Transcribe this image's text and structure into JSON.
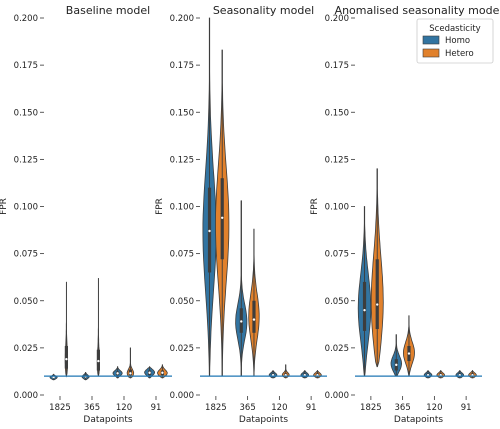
{
  "colors": {
    "homo": "#3274a1",
    "hetero": "#e1812c",
    "baseline": "#1f77b4",
    "inner": "#3d3d3d"
  },
  "legend": {
    "title": "Scedasticity",
    "entries": [
      "Homo",
      "Hetero"
    ],
    "placement": "top-right"
  },
  "chart_data": [
    {
      "type": "violin",
      "title": "Baseline model",
      "xlabel": "Datapoints",
      "ylabel": "FPR",
      "ylim": [
        0,
        0.2
      ],
      "yticks": [
        "0.000",
        "0.025",
        "0.050",
        "0.075",
        "0.100",
        "0.125",
        "0.150",
        "0.175",
        "0.200"
      ],
      "categories": [
        "1825",
        "365",
        "120",
        "91"
      ],
      "baseline": 0.01,
      "series": [
        {
          "name": "Homo",
          "violins": [
            {
              "min": 0.008,
              "max": 0.011,
              "q1": 0.009,
              "median": 0.0095,
              "q3": 0.0102,
              "width": 0.5,
              "mode": 0.0093
            },
            {
              "min": 0.008,
              "max": 0.012,
              "q1": 0.009,
              "median": 0.0098,
              "q3": 0.0105,
              "width": 0.5,
              "mode": 0.0096
            },
            {
              "min": 0.009,
              "max": 0.015,
              "q1": 0.0105,
              "median": 0.0115,
              "q3": 0.0125,
              "width": 0.65,
              "mode": 0.0115
            },
            {
              "min": 0.009,
              "max": 0.015,
              "q1": 0.0105,
              "median": 0.0118,
              "q3": 0.013,
              "width": 0.7,
              "mode": 0.012
            }
          ]
        },
        {
          "name": "Hetero",
          "violins": [
            {
              "min": 0.01,
              "max": 0.06,
              "q1": 0.014,
              "median": 0.019,
              "q3": 0.026,
              "width": 0.22,
              "mode": 0.015
            },
            {
              "min": 0.01,
              "max": 0.062,
              "q1": 0.013,
              "median": 0.018,
              "q3": 0.024,
              "width": 0.22,
              "mode": 0.014
            },
            {
              "min": 0.009,
              "max": 0.025,
              "q1": 0.0105,
              "median": 0.0115,
              "q3": 0.0135,
              "width": 0.6,
              "mode": 0.011
            },
            {
              "min": 0.009,
              "max": 0.016,
              "q1": 0.0105,
              "median": 0.0118,
              "q3": 0.013,
              "width": 0.7,
              "mode": 0.0115
            }
          ]
        }
      ]
    },
    {
      "type": "violin",
      "title": "Seasonality model",
      "xlabel": "Datapoints",
      "ylabel": "FPR",
      "ylim": [
        0,
        0.2
      ],
      "yticks": [
        "0.000",
        "0.025",
        "0.050",
        "0.075",
        "0.100",
        "0.125",
        "0.150",
        "0.175",
        "0.200"
      ],
      "categories": [
        "1825",
        "365",
        "120",
        "91"
      ],
      "baseline": 0.01,
      "series": [
        {
          "name": "Homo",
          "violins": [
            {
              "min": 0.01,
              "max": 0.2,
              "q1": 0.065,
              "median": 0.087,
              "q3": 0.11,
              "width": 0.95,
              "mode": 0.085
            },
            {
              "min": 0.01,
              "max": 0.103,
              "q1": 0.033,
              "median": 0.039,
              "q3": 0.046,
              "width": 0.85,
              "mode": 0.038
            },
            {
              "min": 0.009,
              "max": 0.013,
              "q1": 0.0098,
              "median": 0.0105,
              "q3": 0.0115,
              "width": 0.55,
              "mode": 0.0105
            },
            {
              "min": 0.009,
              "max": 0.013,
              "q1": 0.0098,
              "median": 0.0105,
              "q3": 0.0115,
              "width": 0.55,
              "mode": 0.0105
            }
          ]
        },
        {
          "name": "Hetero",
          "violins": [
            {
              "min": 0.01,
              "max": 0.183,
              "q1": 0.072,
              "median": 0.094,
              "q3": 0.115,
              "width": 0.95,
              "mode": 0.09
            },
            {
              "min": 0.01,
              "max": 0.088,
              "q1": 0.033,
              "median": 0.04,
              "q3": 0.05,
              "width": 0.75,
              "mode": 0.041
            },
            {
              "min": 0.009,
              "max": 0.016,
              "q1": 0.0098,
              "median": 0.0105,
              "q3": 0.0115,
              "width": 0.55,
              "mode": 0.0105
            },
            {
              "min": 0.009,
              "max": 0.013,
              "q1": 0.0098,
              "median": 0.0105,
              "q3": 0.0115,
              "width": 0.55,
              "mode": 0.0105
            }
          ]
        }
      ]
    },
    {
      "type": "violin",
      "title": "Anomalised seasonality model",
      "xlabel": "Datapoints",
      "ylabel": "FPR",
      "ylim": [
        0,
        0.2
      ],
      "yticks": [
        "0.000",
        "0.025",
        "0.050",
        "0.075",
        "0.100",
        "0.125",
        "0.150",
        "0.175",
        "0.200"
      ],
      "categories": [
        "1825",
        "365",
        "120",
        "91"
      ],
      "baseline": 0.01,
      "series": [
        {
          "name": "Homo",
          "violins": [
            {
              "min": 0.01,
              "max": 0.1,
              "q1": 0.034,
              "median": 0.045,
              "q3": 0.06,
              "width": 0.9,
              "mode": 0.045
            },
            {
              "min": 0.01,
              "max": 0.032,
              "q1": 0.013,
              "median": 0.016,
              "q3": 0.019,
              "width": 0.8,
              "mode": 0.016
            },
            {
              "min": 0.009,
              "max": 0.013,
              "q1": 0.0098,
              "median": 0.0105,
              "q3": 0.0115,
              "width": 0.55,
              "mode": 0.0105
            },
            {
              "min": 0.009,
              "max": 0.013,
              "q1": 0.0098,
              "median": 0.0105,
              "q3": 0.0115,
              "width": 0.55,
              "mode": 0.0105
            }
          ]
        },
        {
          "name": "Hetero",
          "violins": [
            {
              "min": 0.015,
              "max": 0.12,
              "q1": 0.035,
              "median": 0.048,
              "q3": 0.072,
              "width": 0.9,
              "mode": 0.045
            },
            {
              "min": 0.01,
              "max": 0.042,
              "q1": 0.018,
              "median": 0.022,
              "q3": 0.026,
              "width": 0.8,
              "mode": 0.022
            },
            {
              "min": 0.009,
              "max": 0.013,
              "q1": 0.0098,
              "median": 0.0105,
              "q3": 0.0115,
              "width": 0.55,
              "mode": 0.0105
            },
            {
              "min": 0.009,
              "max": 0.013,
              "q1": 0.0098,
              "median": 0.0105,
              "q3": 0.0115,
              "width": 0.55,
              "mode": 0.0105
            }
          ]
        }
      ]
    }
  ]
}
